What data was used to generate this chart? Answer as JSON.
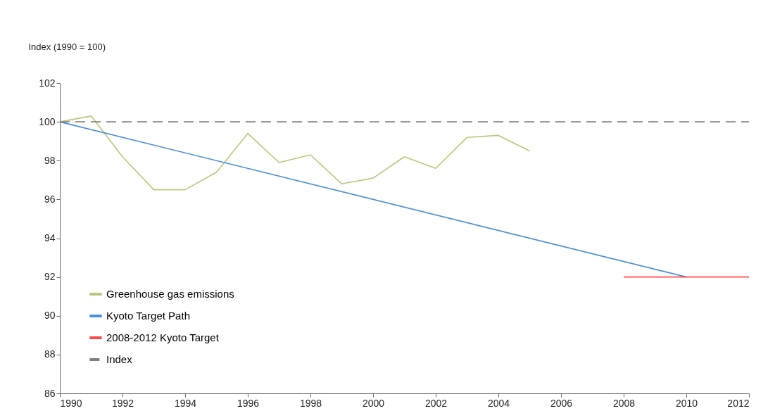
{
  "chart_data": {
    "type": "line",
    "ylabel": "Index (1990 = 100)",
    "xlim": [
      1990,
      2012
    ],
    "xticks": [
      1990,
      1992,
      1994,
      1996,
      1998,
      2000,
      2002,
      2004,
      2006,
      2008,
      2010,
      2012
    ],
    "ylim": [
      86,
      102
    ],
    "yticks": [
      86,
      88,
      90,
      92,
      94,
      96,
      98,
      100,
      102
    ],
    "grid": false,
    "legend": "bottom left",
    "marker": "none",
    "series": [
      {
        "name": "Greenhouse gas emissions",
        "color": "#b8c878",
        "line_style": "solid",
        "x": [
          1990,
          1991,
          1992,
          1993,
          1994,
          1995,
          1996,
          1997,
          1998,
          1999,
          2000,
          2001,
          2002,
          2003,
          2004,
          2005
        ],
        "values": [
          100,
          100.3,
          98.2,
          96.5,
          96.5,
          97.4,
          99.4,
          97.9,
          98.3,
          96.8,
          97.1,
          98.2,
          97.6,
          99.2,
          99.3,
          98.5
        ]
      },
      {
        "name": "Kyoto Target Path",
        "color": "#4a8fd8",
        "line_style": "solid",
        "x": [
          1990,
          2010
        ],
        "values": [
          100,
          92
        ]
      },
      {
        "name": "2008-2012 Kyoto Target",
        "color": "#ff4a4a",
        "line_style": "solid",
        "x": [
          2008,
          2012
        ],
        "values": [
          92,
          92
        ]
      },
      {
        "name": "Index",
        "color": "#808080",
        "line_style": "dashed",
        "x": [
          1990,
          2012
        ],
        "values": [
          100,
          100
        ]
      }
    ]
  }
}
